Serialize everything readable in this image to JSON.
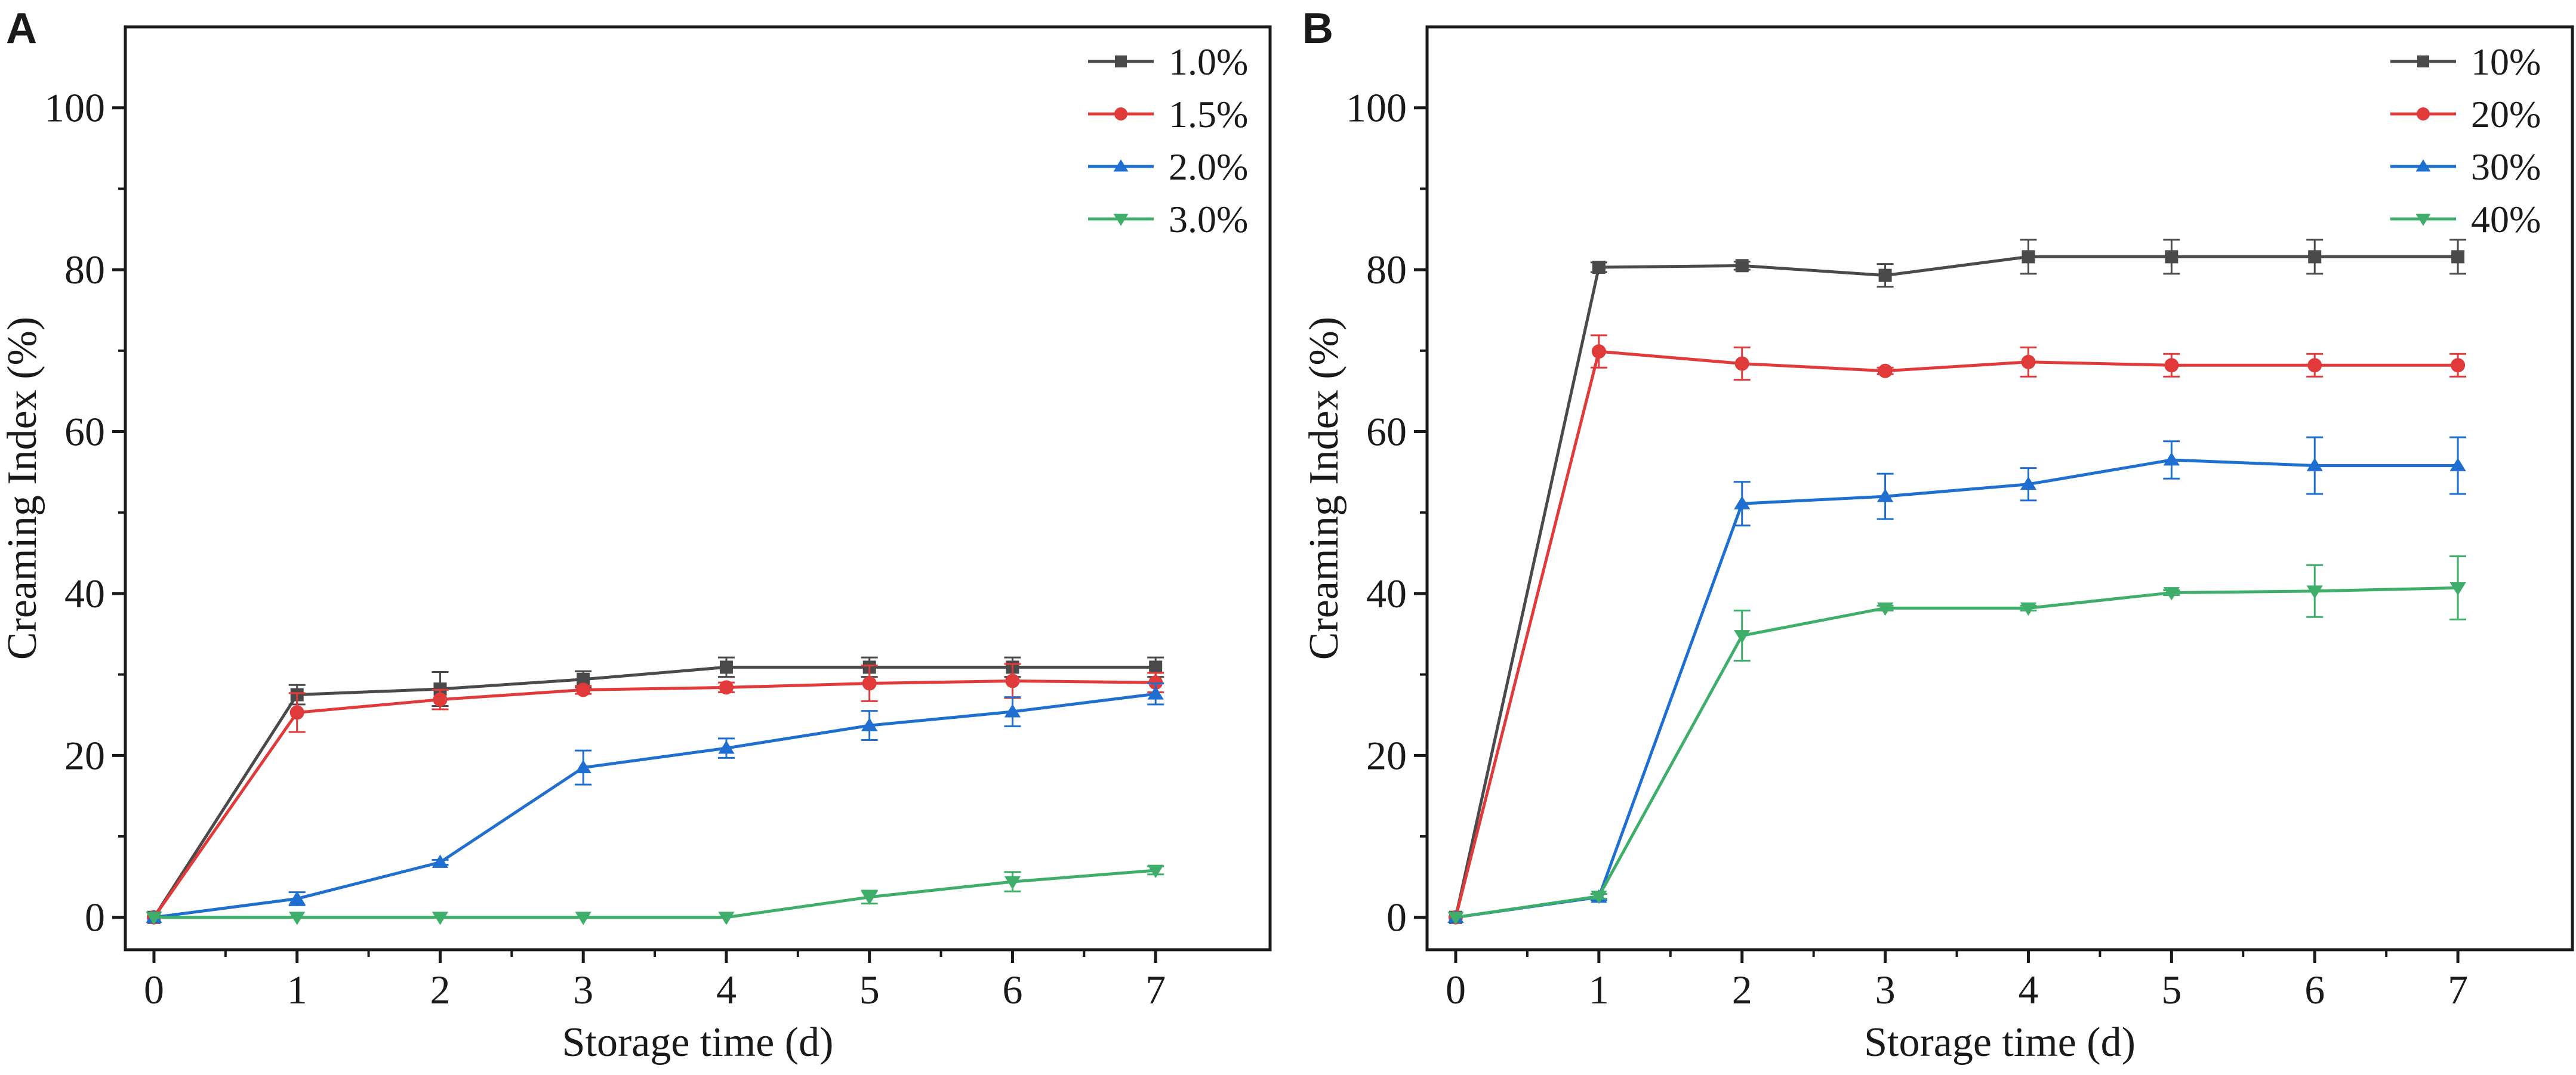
{
  "chart_data": [
    {
      "panel_label": "A",
      "type": "line",
      "xlabel": "Storage time (d)",
      "ylabel": "Creaming Index (%)",
      "xlim": [
        -0.2,
        7.8
      ],
      "ylim": [
        -4,
        110
      ],
      "x_ticks": [
        0,
        1,
        2,
        3,
        4,
        5,
        6,
        7
      ],
      "y_ticks": [
        0,
        20,
        40,
        60,
        80,
        100
      ],
      "legend_position": "top-right",
      "grid": false,
      "x": [
        0,
        1,
        2,
        3,
        4,
        5,
        6,
        7
      ],
      "series": [
        {
          "name": "1.0%",
          "color": "#4a4a4a",
          "marker": "square",
          "values": [
            0,
            27.5,
            28.2,
            29.4,
            30.9,
            30.9,
            30.9,
            30.9
          ],
          "errors": [
            0,
            1.2,
            2.1,
            1.0,
            1.2,
            1.2,
            1.2,
            1.2
          ]
        },
        {
          "name": "1.5%",
          "color": "#e03a3a",
          "marker": "circle",
          "values": [
            0,
            25.3,
            26.9,
            28.1,
            28.4,
            28.9,
            29.2,
            29.0
          ],
          "errors": [
            0,
            2.4,
            1.2,
            0.5,
            0.6,
            2.2,
            2.1,
            1.2
          ]
        },
        {
          "name": "2.0%",
          "color": "#1f6fd1",
          "marker": "triangle-up",
          "values": [
            0,
            2.3,
            6.8,
            18.5,
            20.9,
            23.7,
            25.4,
            27.6
          ],
          "errors": [
            0,
            0.8,
            0.3,
            2.1,
            1.2,
            1.8,
            1.8,
            1.3
          ]
        },
        {
          "name": "3.0%",
          "color": "#3fae6a",
          "marker": "triangle-down",
          "values": [
            0,
            0,
            0,
            0,
            0,
            2.5,
            4.4,
            5.8
          ],
          "errors": [
            0,
            0,
            0,
            0,
            0,
            0.8,
            1.2,
            0.5
          ]
        }
      ]
    },
    {
      "panel_label": "B",
      "type": "line",
      "xlabel": "Storage time (d)",
      "ylabel": "Creaming Index (%)",
      "xlim": [
        -0.2,
        7.8
      ],
      "ylim": [
        -4,
        110
      ],
      "x_ticks": [
        0,
        1,
        2,
        3,
        4,
        5,
        6,
        7
      ],
      "y_ticks": [
        0,
        20,
        40,
        60,
        80,
        100
      ],
      "legend_position": "top-right",
      "grid": false,
      "x": [
        0,
        1,
        2,
        3,
        4,
        5,
        6,
        7
      ],
      "series": [
        {
          "name": "10%",
          "color": "#4a4a4a",
          "marker": "square",
          "values": [
            0,
            80.3,
            80.5,
            79.3,
            81.6,
            81.6,
            81.6,
            81.6
          ],
          "errors": [
            0,
            0.6,
            0.5,
            1.4,
            2.1,
            2.1,
            2.1,
            2.1
          ]
        },
        {
          "name": "20%",
          "color": "#e03a3a",
          "marker": "circle",
          "values": [
            0,
            69.9,
            68.4,
            67.5,
            68.6,
            68.2,
            68.2,
            68.2
          ],
          "errors": [
            0,
            2.0,
            2.0,
            0.4,
            1.8,
            1.4,
            1.4,
            1.4
          ]
        },
        {
          "name": "30%",
          "color": "#1f6fd1",
          "marker": "triangle-up",
          "values": [
            0,
            2.5,
            51.1,
            52.0,
            53.5,
            56.5,
            55.8,
            55.8
          ],
          "errors": [
            0,
            0.4,
            2.7,
            2.8,
            2.0,
            2.3,
            3.5,
            3.5
          ]
        },
        {
          "name": "40%",
          "color": "#3fae6a",
          "marker": "triangle-down",
          "values": [
            0,
            2.6,
            34.8,
            38.2,
            38.2,
            40.1,
            40.3,
            40.7
          ],
          "errors": [
            0,
            0.3,
            3.1,
            0.3,
            0.3,
            0.3,
            3.2,
            3.9
          ]
        }
      ]
    }
  ]
}
